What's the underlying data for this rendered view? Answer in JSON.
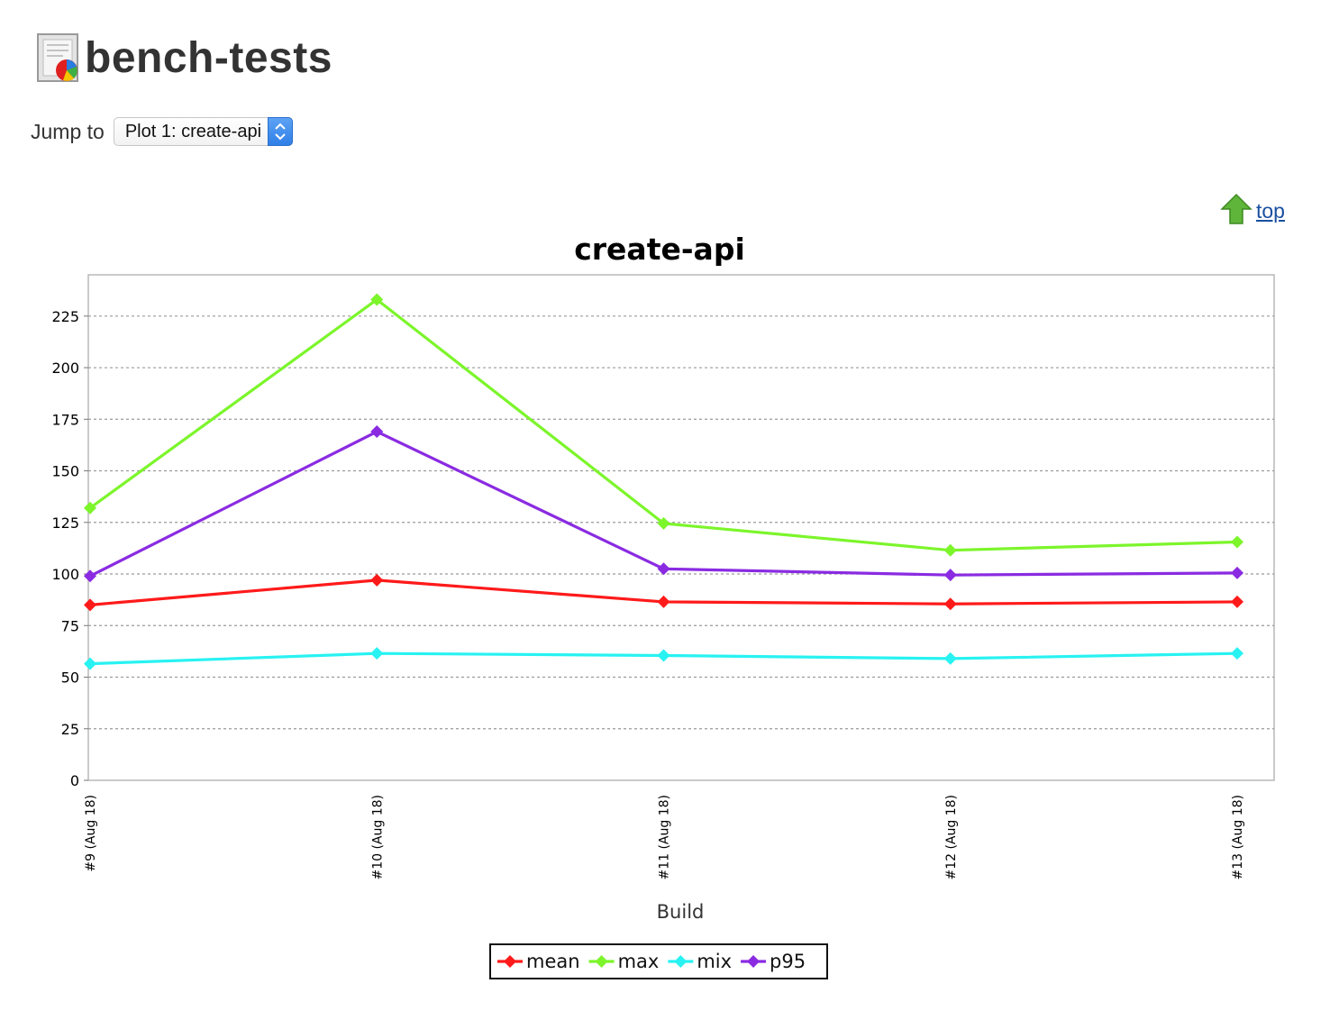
{
  "header": {
    "title": "bench-tests",
    "icon": "plot-report-icon"
  },
  "jump": {
    "label": "Jump to",
    "selected": "Plot 1: create-api"
  },
  "top_link": {
    "label": "top",
    "icon": "up-arrow-icon"
  },
  "colors": {
    "mean": "#ff1a1a",
    "max": "#7cf52b",
    "mix": "#28f2f2",
    "p95": "#8a2be2"
  },
  "chart_data": {
    "type": "line",
    "title": "create-api",
    "xlabel": "Build",
    "ylabel": "",
    "ylim": [
      0,
      245
    ],
    "yticks": [
      0,
      25,
      50,
      75,
      100,
      125,
      150,
      175,
      200,
      225
    ],
    "categories": [
      "#9 (Aug 18)",
      "#10 (Aug 18)",
      "#11 (Aug 18)",
      "#12 (Aug 18)",
      "#13 (Aug 18)"
    ],
    "grid": true,
    "legend": "bottom-center",
    "series": [
      {
        "name": "mean",
        "color": "#ff1a1a",
        "values": [
          85,
          97,
          86.5,
          85.5,
          86.5
        ]
      },
      {
        "name": "max",
        "color": "#7cf52b",
        "values": [
          132,
          233,
          124.5,
          111.5,
          115.5
        ]
      },
      {
        "name": "mix",
        "color": "#28f2f2",
        "values": [
          56.5,
          61.5,
          60.5,
          59,
          61.5
        ]
      },
      {
        "name": "p95",
        "color": "#8a2be2",
        "values": [
          99,
          169,
          102.5,
          99.5,
          100.5
        ]
      }
    ]
  }
}
